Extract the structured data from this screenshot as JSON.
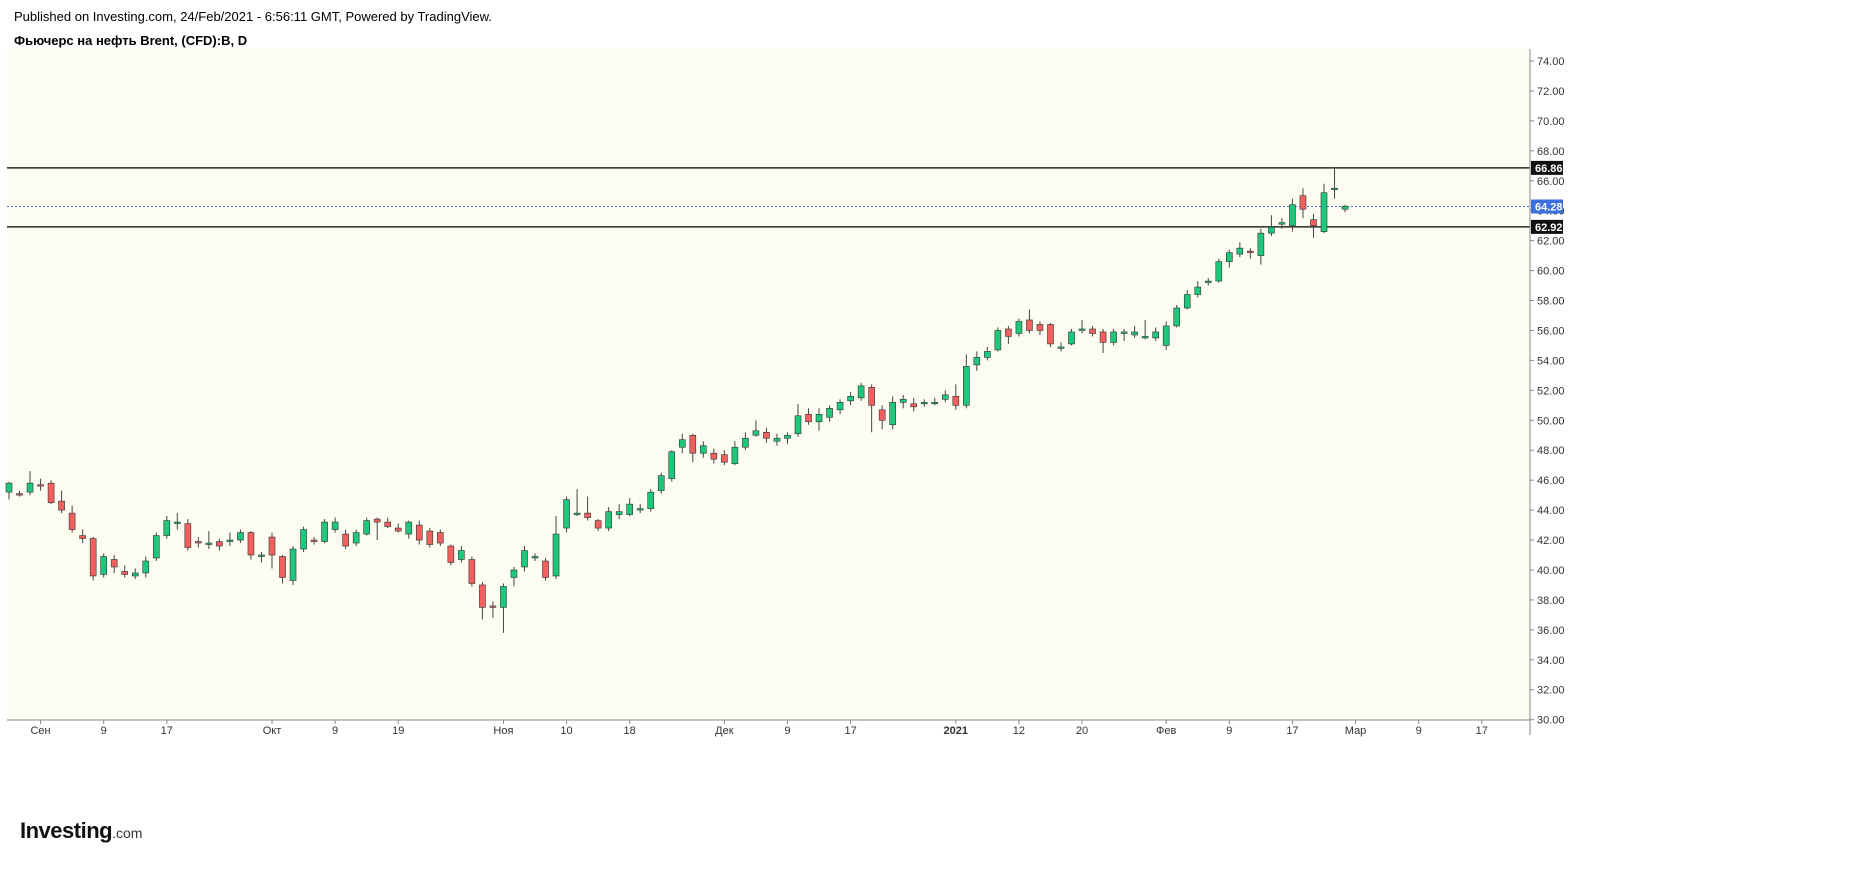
{
  "header": {
    "published": "Published on Investing.com, 24/Feb/2021 - 6:56:11 GMT, Powered by TradingView.",
    "symbol": "Фьючерс на нефть Brent, (CFD):B, D"
  },
  "logo": {
    "main": "Investing",
    "suffix": ".com"
  },
  "colors": {
    "plot_background": "#fcfdf0",
    "up": "#1ec77a",
    "down": "#f0605f",
    "wick": "#444444",
    "level_line": "#000000",
    "last_price": "#3d6fe0"
  },
  "chart_data": {
    "type": "candlestick",
    "title": "Фьючерс на нефть Brent, (CFD):B, D",
    "ylim": [
      30.0,
      75.0
    ],
    "y_ticks": [
      "74.00",
      "72.00",
      "70.00",
      "68.00",
      "66.00",
      "64.00",
      "62.00",
      "60.00",
      "58.00",
      "56.00",
      "54.00",
      "52.00",
      "50.00",
      "48.00",
      "46.00",
      "44.00",
      "42.00",
      "40.00",
      "38.00",
      "36.00",
      "34.00",
      "32.00",
      "30.00"
    ],
    "x_ticks": [
      {
        "label": "Сен",
        "index": 3,
        "bold": false
      },
      {
        "label": "9",
        "index": 9,
        "bold": false
      },
      {
        "label": "17",
        "index": 15,
        "bold": false
      },
      {
        "label": "Окт",
        "index": 25,
        "bold": false
      },
      {
        "label": "9",
        "index": 31,
        "bold": false
      },
      {
        "label": "19",
        "index": 37,
        "bold": false
      },
      {
        "label": "Ноя",
        "index": 47,
        "bold": false
      },
      {
        "label": "10",
        "index": 53,
        "bold": false
      },
      {
        "label": "18",
        "index": 59,
        "bold": false
      },
      {
        "label": "Дек",
        "index": 68,
        "bold": false
      },
      {
        "label": "9",
        "index": 74,
        "bold": false
      },
      {
        "label": "17",
        "index": 80,
        "bold": false
      },
      {
        "label": "2021",
        "index": 90,
        "bold": true
      },
      {
        "label": "12",
        "index": 96,
        "bold": false
      },
      {
        "label": "20",
        "index": 102,
        "bold": false
      },
      {
        "label": "Фев",
        "index": 110,
        "bold": false
      },
      {
        "label": "9",
        "index": 116,
        "bold": false
      },
      {
        "label": "17",
        "index": 122,
        "bold": false
      },
      {
        "label": "Мар",
        "index": 128,
        "bold": false
      },
      {
        "label": "9",
        "index": 134,
        "bold": false
      },
      {
        "label": "17",
        "index": 140,
        "bold": false
      }
    ],
    "levels": [
      {
        "value": 66.86,
        "label": "66.86",
        "style": "solid"
      },
      {
        "value": 62.92,
        "label": "62.92",
        "style": "solid"
      },
      {
        "value": 64.28,
        "label": "64.28",
        "style": "dotted-last"
      }
    ],
    "candles": [
      [
        45.2,
        45.8,
        44.7,
        45.9
      ],
      [
        45.1,
        45.0,
        44.9,
        45.3
      ],
      [
        45.2,
        45.8,
        45.0,
        46.6
      ],
      [
        45.7,
        45.6,
        45.3,
        46.1
      ],
      [
        45.8,
        44.5,
        44.4,
        46.0
      ],
      [
        44.6,
        44.0,
        43.8,
        45.3
      ],
      [
        43.8,
        42.7,
        42.5,
        44.3
      ],
      [
        42.3,
        42.1,
        41.8,
        42.7
      ],
      [
        42.1,
        39.6,
        39.3,
        42.2
      ],
      [
        39.7,
        40.9,
        39.5,
        41.1
      ],
      [
        40.7,
        40.2,
        39.8,
        41.0
      ],
      [
        39.9,
        39.7,
        39.5,
        40.3
      ],
      [
        39.6,
        39.8,
        39.4,
        40.1
      ],
      [
        39.8,
        40.6,
        39.5,
        40.9
      ],
      [
        40.8,
        42.3,
        40.6,
        42.5
      ],
      [
        42.3,
        43.3,
        42.1,
        43.6
      ],
      [
        43.2,
        43.2,
        42.7,
        43.8
      ],
      [
        43.1,
        41.5,
        41.3,
        43.4
      ],
      [
        41.9,
        41.8,
        41.5,
        42.2
      ],
      [
        41.7,
        41.8,
        41.4,
        42.6
      ],
      [
        41.9,
        41.6,
        41.3,
        42.1
      ],
      [
        41.9,
        42.0,
        41.6,
        42.5
      ],
      [
        42.0,
        42.5,
        41.8,
        42.7
      ],
      [
        42.5,
        41.0,
        40.7,
        42.6
      ],
      [
        40.9,
        41.0,
        40.5,
        41.2
      ],
      [
        42.2,
        41.0,
        40.1,
        42.5
      ],
      [
        40.9,
        39.5,
        39.1,
        41.0
      ],
      [
        39.3,
        41.4,
        39.0,
        41.6
      ],
      [
        41.4,
        42.7,
        41.2,
        42.9
      ],
      [
        42.0,
        41.9,
        41.7,
        42.2
      ],
      [
        41.9,
        43.2,
        41.8,
        43.4
      ],
      [
        42.7,
        43.2,
        42.5,
        43.5
      ],
      [
        42.4,
        41.6,
        41.4,
        42.7
      ],
      [
        41.8,
        42.5,
        41.6,
        42.7
      ],
      [
        42.4,
        43.3,
        42.3,
        43.5
      ],
      [
        43.4,
        43.2,
        42.0,
        43.5
      ],
      [
        43.2,
        42.9,
        42.8,
        43.5
      ],
      [
        42.8,
        42.6,
        42.5,
        43.1
      ],
      [
        42.4,
        43.2,
        42.1,
        43.3
      ],
      [
        43.0,
        42.0,
        41.7,
        43.3
      ],
      [
        42.6,
        41.7,
        41.5,
        42.8
      ],
      [
        42.5,
        41.8,
        41.6,
        42.7
      ],
      [
        41.6,
        40.5,
        40.3,
        41.7
      ],
      [
        40.7,
        41.3,
        40.5,
        41.6
      ],
      [
        40.7,
        39.1,
        38.9,
        40.9
      ],
      [
        39.0,
        37.5,
        36.7,
        39.2
      ],
      [
        37.6,
        37.5,
        36.8,
        37.9
      ],
      [
        37.5,
        38.9,
        35.8,
        39.1
      ],
      [
        39.5,
        40.0,
        38.9,
        40.2
      ],
      [
        40.2,
        41.3,
        39.9,
        41.6
      ],
      [
        40.9,
        40.9,
        40.6,
        41.1
      ],
      [
        40.6,
        39.5,
        39.3,
        40.8
      ],
      [
        39.6,
        42.4,
        39.4,
        43.6
      ],
      [
        42.8,
        44.7,
        42.5,
        44.9
      ],
      [
        43.8,
        43.8,
        43.6,
        45.4
      ],
      [
        43.8,
        43.5,
        43.3,
        44.9
      ],
      [
        43.3,
        42.8,
        42.6,
        43.4
      ],
      [
        42.8,
        43.9,
        42.6,
        44.2
      ],
      [
        43.7,
        43.9,
        43.4,
        44.4
      ],
      [
        43.7,
        44.4,
        43.6,
        44.8
      ],
      [
        44.0,
        44.1,
        43.8,
        44.4
      ],
      [
        44.1,
        45.2,
        43.9,
        45.4
      ],
      [
        45.3,
        46.3,
        45.1,
        46.5
      ],
      [
        46.1,
        47.9,
        45.9,
        48.0
      ],
      [
        48.2,
        48.7,
        47.8,
        49.1
      ],
      [
        49.0,
        47.8,
        47.2,
        49.1
      ],
      [
        47.8,
        48.3,
        47.5,
        48.6
      ],
      [
        47.8,
        47.4,
        47.1,
        48.1
      ],
      [
        47.7,
        47.2,
        47.0,
        48.0
      ],
      [
        47.1,
        48.2,
        47.0,
        48.6
      ],
      [
        48.2,
        48.8,
        48.0,
        49.2
      ],
      [
        49.0,
        49.3,
        48.9,
        50.0
      ],
      [
        49.2,
        48.8,
        48.5,
        49.5
      ],
      [
        48.6,
        48.8,
        48.3,
        49.1
      ],
      [
        48.8,
        49.0,
        48.4,
        49.2
      ],
      [
        49.1,
        50.3,
        48.9,
        51.1
      ],
      [
        50.4,
        49.9,
        49.7,
        50.8
      ],
      [
        49.9,
        50.4,
        49.3,
        50.8
      ],
      [
        50.2,
        50.8,
        49.9,
        51.0
      ],
      [
        50.7,
        51.2,
        50.4,
        51.4
      ],
      [
        51.3,
        51.6,
        51.0,
        51.9
      ],
      [
        51.5,
        52.3,
        51.3,
        52.5
      ],
      [
        52.2,
        51.0,
        49.2,
        52.4
      ],
      [
        50.7,
        50.0,
        49.4,
        51.0
      ],
      [
        49.7,
        51.2,
        49.4,
        51.6
      ],
      [
        51.2,
        51.4,
        50.8,
        51.7
      ],
      [
        51.1,
        50.9,
        50.6,
        51.5
      ],
      [
        51.1,
        51.2,
        50.9,
        51.4
      ],
      [
        51.2,
        51.2,
        51.0,
        51.5
      ],
      [
        51.4,
        51.7,
        51.2,
        52.0
      ],
      [
        51.6,
        51.0,
        50.7,
        52.4
      ],
      [
        51.0,
        53.6,
        50.8,
        54.4
      ],
      [
        53.7,
        54.2,
        53.3,
        54.6
      ],
      [
        54.2,
        54.6,
        54.0,
        54.9
      ],
      [
        54.7,
        56.0,
        54.6,
        56.2
      ],
      [
        56.1,
        55.6,
        55.1,
        56.3
      ],
      [
        55.8,
        56.6,
        55.6,
        56.8
      ],
      [
        56.7,
        56.0,
        55.8,
        57.4
      ],
      [
        56.4,
        56.0,
        55.7,
        56.6
      ],
      [
        56.4,
        55.1,
        54.9,
        56.5
      ],
      [
        54.9,
        54.9,
        54.6,
        55.2
      ],
      [
        55.1,
        55.9,
        55.0,
        56.1
      ],
      [
        56.0,
        56.1,
        55.8,
        56.7
      ],
      [
        56.1,
        55.8,
        55.6,
        56.3
      ],
      [
        55.9,
        55.2,
        54.5,
        56.1
      ],
      [
        55.2,
        55.9,
        55.0,
        56.1
      ],
      [
        55.8,
        55.9,
        55.3,
        56.1
      ],
      [
        55.7,
        55.9,
        55.5,
        56.3
      ],
      [
        55.6,
        55.6,
        55.4,
        56.7
      ],
      [
        55.5,
        55.9,
        55.3,
        56.2
      ],
      [
        55.0,
        56.3,
        54.7,
        56.6
      ],
      [
        56.3,
        57.5,
        56.2,
        57.7
      ],
      [
        57.5,
        58.4,
        57.4,
        58.7
      ],
      [
        58.4,
        58.9,
        58.2,
        59.3
      ],
      [
        59.2,
        59.3,
        59.0,
        59.5
      ],
      [
        59.3,
        60.6,
        59.2,
        60.8
      ],
      [
        60.6,
        61.2,
        60.2,
        61.4
      ],
      [
        61.1,
        61.5,
        60.9,
        61.9
      ],
      [
        61.3,
        61.2,
        60.8,
        61.5
      ],
      [
        61.0,
        62.5,
        60.4,
        62.8
      ],
      [
        62.5,
        62.9,
        62.3,
        63.7
      ],
      [
        63.1,
        63.2,
        62.8,
        63.5
      ],
      [
        63.0,
        64.4,
        62.6,
        64.8
      ],
      [
        65.0,
        64.1,
        63.5,
        65.5
      ],
      [
        63.4,
        63.0,
        62.2,
        63.8
      ],
      [
        62.6,
        65.2,
        62.5,
        65.8
      ],
      [
        65.4,
        65.5,
        64.8,
        66.9
      ],
      [
        64.1,
        64.3,
        63.9,
        64.4
      ]
    ]
  }
}
